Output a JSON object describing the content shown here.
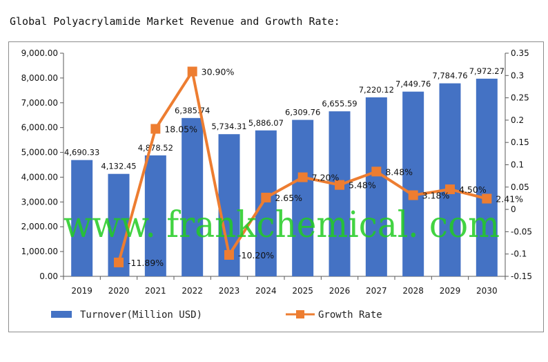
{
  "title": "Global Polyacrylamide Market Revenue and Growth Rate:",
  "watermark": "www. frankchemical. com",
  "colors": {
    "bar": "#4472c4",
    "line": "#ed7d31",
    "watermark": "#22cc22"
  },
  "chart_data": {
    "type": "bar",
    "categories": [
      "2019",
      "2020",
      "2021",
      "2022",
      "2023",
      "2024",
      "2025",
      "2026",
      "2027",
      "2028",
      "2029",
      "2030"
    ],
    "series": [
      {
        "name": "Turnover(Million USD)",
        "type": "bar",
        "axis": "left",
        "values": [
          4690.33,
          4132.45,
          4878.52,
          6385.74,
          5734.31,
          5886.07,
          6309.76,
          6655.59,
          7220.12,
          7449.76,
          7784.76,
          7972.27
        ],
        "labels": [
          "4,690.33",
          "4,132.45",
          "4,878.52",
          "6,385.74",
          "5,734.31",
          "5,886.07",
          "6,309.76",
          "6,655.59",
          "7,220.12",
          "7,449.76",
          "7,784.76",
          "7,972.27"
        ]
      },
      {
        "name": "Growth Rate",
        "type": "line",
        "axis": "right",
        "values": [
          null,
          -0.1189,
          0.1805,
          0.309,
          -0.102,
          0.0265,
          0.072,
          0.0548,
          0.0848,
          0.0318,
          0.045,
          0.0241
        ],
        "labels": [
          "",
          "-11.89%",
          "18.05%",
          "30.90%",
          "-10.20%",
          "2.65%",
          "7.20%",
          "5.48%",
          "8.48%",
          "3.18%",
          "4.50%",
          "2.41%"
        ]
      }
    ],
    "left_axis": {
      "ylim": [
        0,
        9000
      ],
      "ticks": [
        0,
        1000,
        2000,
        3000,
        4000,
        5000,
        6000,
        7000,
        8000,
        9000
      ],
      "tick_labels": [
        "0.00",
        "1,000.00",
        "2,000.00",
        "3,000.00",
        "4,000.00",
        "5,000.00",
        "6,000.00",
        "7,000.00",
        "8,000.00",
        "9,000.00"
      ]
    },
    "right_axis": {
      "ylim": [
        -0.15,
        0.35
      ],
      "ticks": [
        -0.15,
        -0.1,
        -0.05,
        0,
        0.05,
        0.1,
        0.15,
        0.2,
        0.25,
        0.3,
        0.35
      ],
      "tick_labels": [
        "-0.15",
        "-0.1",
        "-0.05",
        "0",
        "0.05",
        "0.1",
        "0.15",
        "0.2",
        "0.25",
        "0.3",
        "0.35"
      ]
    },
    "grid": false,
    "legend": "bottom"
  }
}
